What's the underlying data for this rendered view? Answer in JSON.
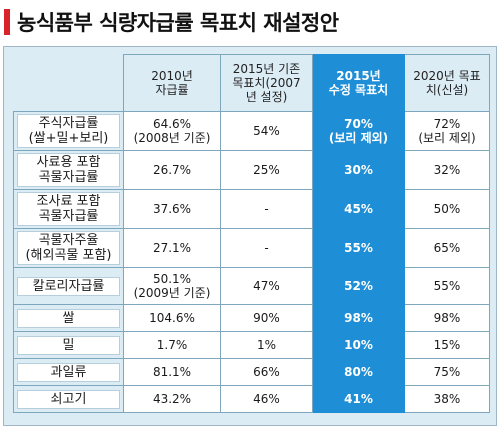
{
  "title": "농식품부 식량자급률 목표치 재설정안",
  "columns": [
    "2010년\n자급률",
    "2015년 기존\n목표치(2007\n년 설정)",
    "2015년\n수정 목표치",
    "2020년 목표\n치(신설)"
  ],
  "rows": [
    {
      "label": "주식자급률\n(쌀+밀+보리)",
      "values": [
        "64.6%\n(2008년 기준)",
        "54%",
        "70%\n(보리 제외)",
        "72%\n(보리 제외)"
      ]
    },
    {
      "label": "사료용 포함\n곡물자급률",
      "values": [
        "26.7%",
        "25%",
        "30%",
        "32%"
      ]
    },
    {
      "label": "조사료 포함\n곡물자급률",
      "values": [
        "37.6%",
        "-",
        "45%",
        "50%"
      ]
    },
    {
      "label": "곡물자주율\n(해외곡물 포함)",
      "values": [
        "27.1%",
        "-",
        "55%",
        "65%"
      ]
    },
    {
      "label": "칼로리자급률",
      "values": [
        "50.1%\n(2009년 기준)",
        "47%",
        "52%",
        "55%"
      ]
    },
    {
      "label": "쌀",
      "values": [
        "104.6%",
        "90%",
        "98%",
        "98%"
      ]
    },
    {
      "label": "밀",
      "values": [
        "1.7%",
        "1%",
        "10%",
        "15%"
      ]
    },
    {
      "label": "과일류",
      "values": [
        "81.1%",
        "66%",
        "80%",
        "75%"
      ]
    },
    {
      "label": "쇠고기",
      "values": [
        "43.2%",
        "46%",
        "41%",
        "38%"
      ]
    }
  ],
  "colors": {
    "title_marker": "#d8232a",
    "highlight": "#1e8fd6",
    "frame": "#dcecf5"
  }
}
